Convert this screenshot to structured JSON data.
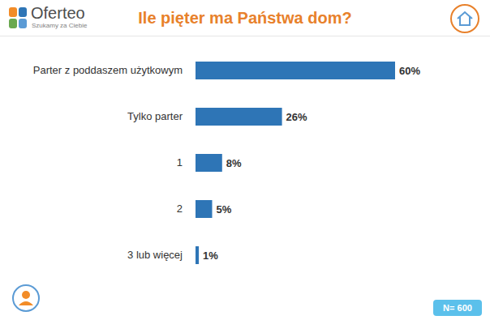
{
  "chart_data": {
    "type": "bar",
    "title": "Ile pięter ma Państwa dom?",
    "orientation": "horizontal",
    "categories": [
      "Parter z poddaszem użytkowym",
      "Tylko parter",
      "1",
      "2",
      "3 lub więcej"
    ],
    "values": [
      60,
      26,
      8,
      5,
      1
    ],
    "value_labels": [
      "60%",
      "26%",
      "8%",
      "5%",
      "1%"
    ],
    "color": "#2e75b6",
    "xlim": [
      0,
      60
    ],
    "grid": false,
    "data_labels": true,
    "tick_labels": "y",
    "annotations": [
      "Oferteo",
      "Szukamy za Ciebie",
      "N= 600"
    ]
  }
}
